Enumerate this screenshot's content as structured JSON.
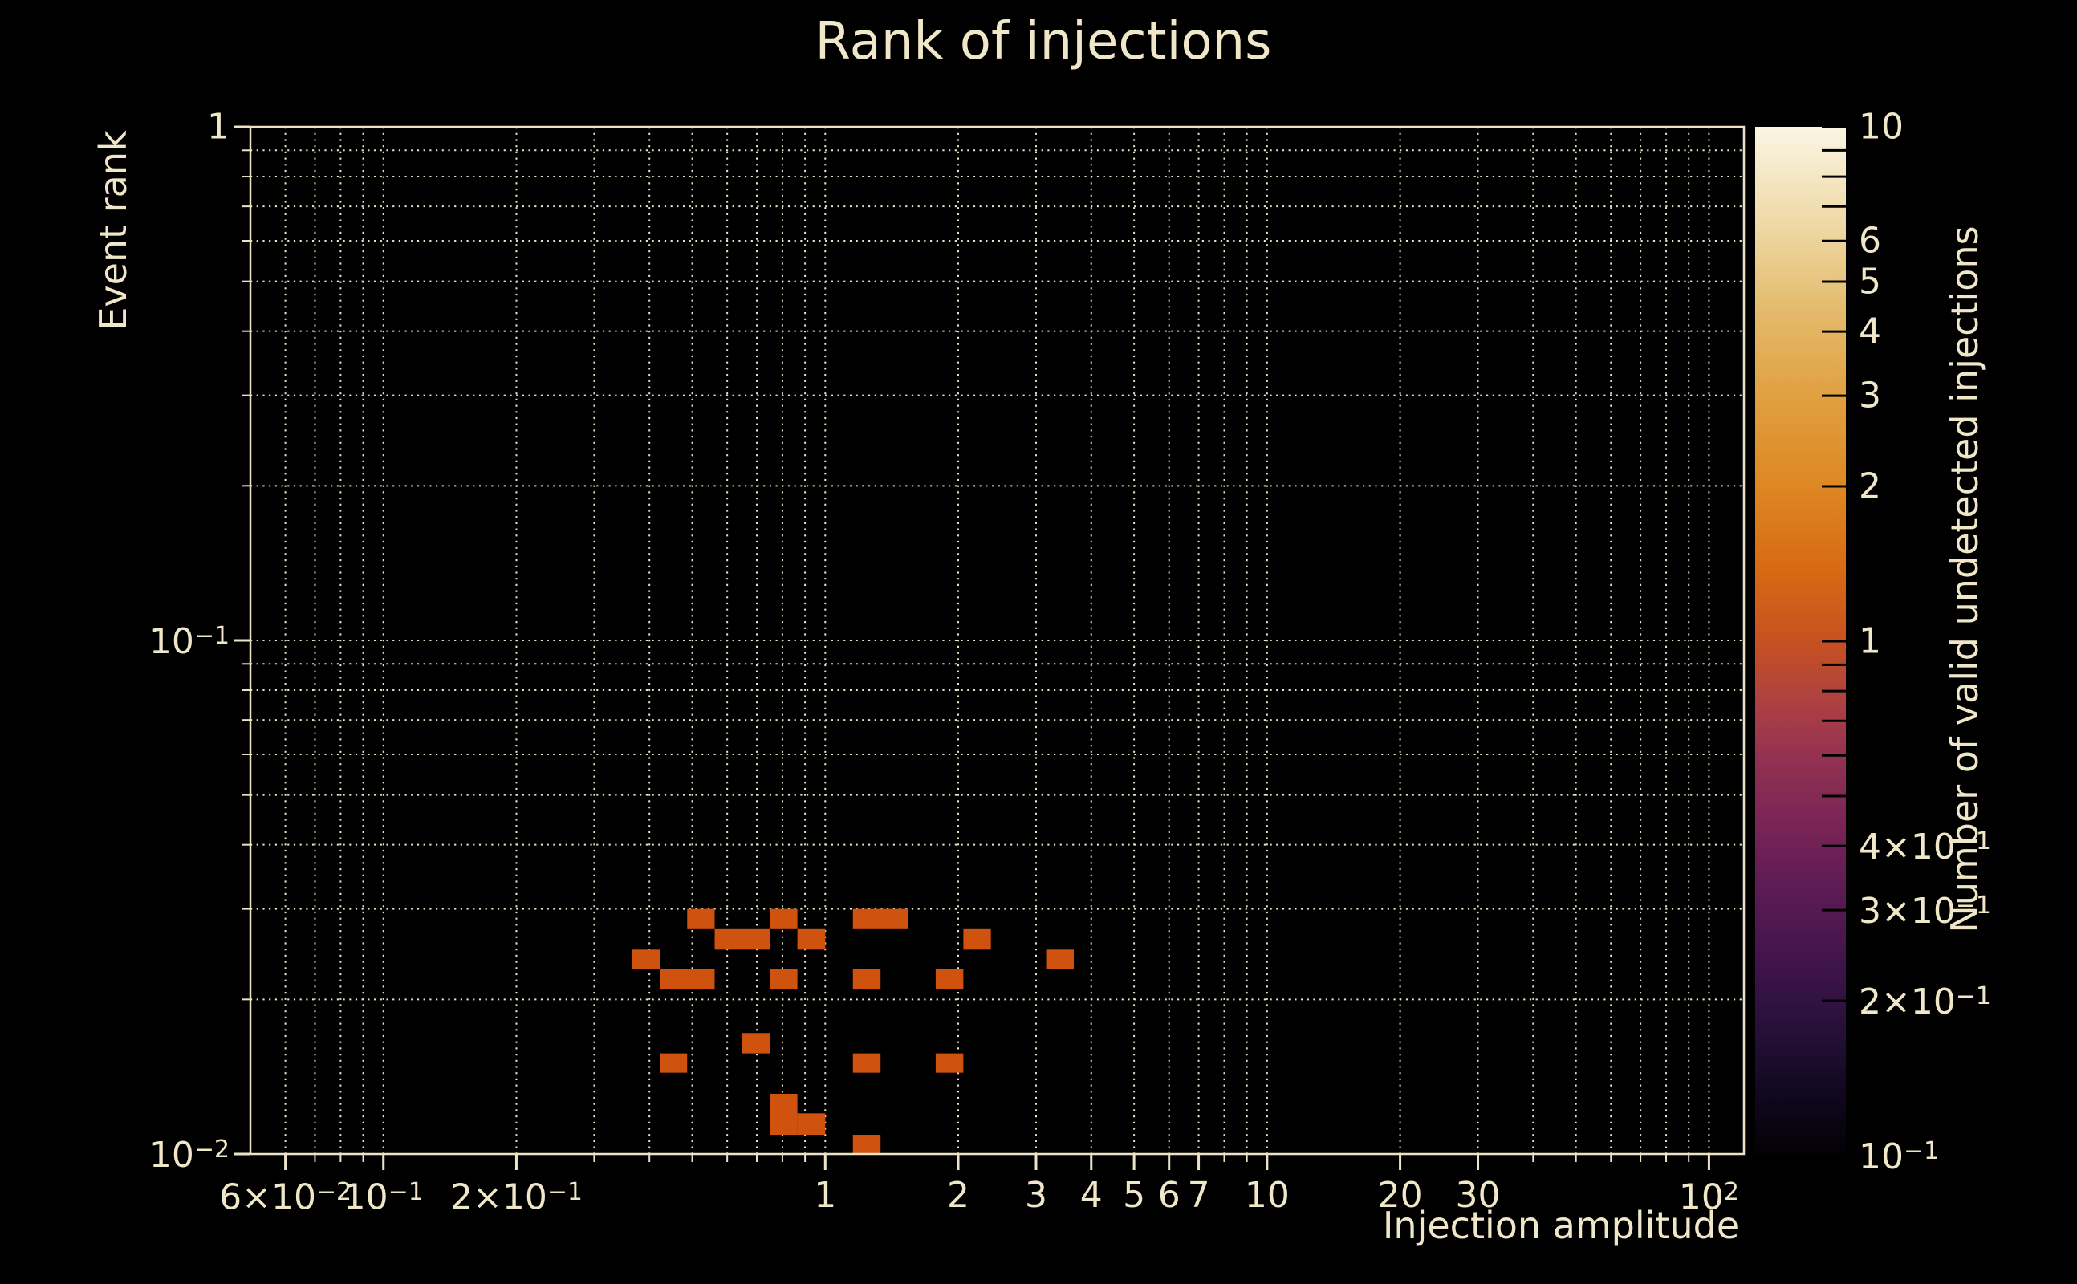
{
  "title": "Rank of injections",
  "colors": {
    "background": "#000000",
    "text": "#f0e7c8",
    "grid": "#ece3c6",
    "spine": "#ece3c6",
    "cell": "#d0520f",
    "colorbar_tick": "#000000"
  },
  "chart_data": {
    "type": "heatmap",
    "title": "Rank of injections",
    "xlabel": "Injection amplitude",
    "ylabel": "Event rank",
    "x_scale": "log",
    "y_scale": "log",
    "xlim": [
      0.05,
      120
    ],
    "ylim": [
      0.01,
      1
    ],
    "grid": "dotted cream gridlines at all log decades and minor multiples, both axes",
    "x_ticks": [
      {
        "v": 0.06,
        "m": "6×10",
        "e": "−2"
      },
      {
        "v": 0.1,
        "m": "10",
        "e": "−1"
      },
      {
        "v": 0.2,
        "m": "2×10",
        "e": "−1"
      },
      {
        "v": 1,
        "m": "1"
      },
      {
        "v": 2,
        "m": "2"
      },
      {
        "v": 3,
        "m": "3"
      },
      {
        "v": 4,
        "m": "4"
      },
      {
        "v": 5,
        "m": "5"
      },
      {
        "v": 6,
        "m": "6"
      },
      {
        "v": 7,
        "m": "7"
      },
      {
        "v": 10,
        "m": "10"
      },
      {
        "v": 20,
        "m": "20"
      },
      {
        "v": 30,
        "m": "30"
      },
      {
        "v": 100,
        "m": "10",
        "e": "2"
      }
    ],
    "y_ticks": [
      {
        "v": 1,
        "m": "1"
      },
      {
        "v": 0.1,
        "m": "10",
        "e": "−1"
      },
      {
        "v": 0.01,
        "m": "10",
        "e": "−2"
      }
    ],
    "colorbar": {
      "label": "Number of valid undetected injections",
      "scale": "log",
      "lim": [
        0.1,
        10
      ],
      "ticks": [
        {
          "v": 10,
          "m": "10"
        },
        {
          "v": 6,
          "m": "6"
        },
        {
          "v": 5,
          "m": "5"
        },
        {
          "v": 4,
          "m": "4"
        },
        {
          "v": 3,
          "m": "3"
        },
        {
          "v": 2,
          "m": "2"
        },
        {
          "v": 1,
          "m": "1"
        },
        {
          "v": 0.4,
          "m": "4×10",
          "e": "−1"
        },
        {
          "v": 0.3,
          "m": "3×10",
          "e": "−1"
        },
        {
          "v": 0.2,
          "m": "2×10",
          "e": "−1"
        },
        {
          "v": 0.1,
          "m": "10",
          "e": "−1"
        }
      ],
      "minor_ticks": [
        9,
        8,
        7,
        0.9,
        0.8,
        0.7,
        0.6,
        0.5
      ],
      "gradient": [
        {
          "t": 0.0,
          "c": "#030104"
        },
        {
          "t": 0.06,
          "c": "#10081f"
        },
        {
          "t": 0.12,
          "c": "#251038"
        },
        {
          "t": 0.18,
          "c": "#3d1349"
        },
        {
          "t": 0.25,
          "c": "#591a53"
        },
        {
          "t": 0.31,
          "c": "#742256"
        },
        {
          "t": 0.38,
          "c": "#903052"
        },
        {
          "t": 0.44,
          "c": "#ad4043"
        },
        {
          "t": 0.5,
          "c": "#c75120"
        },
        {
          "t": 0.57,
          "c": "#d76a14"
        },
        {
          "t": 0.65,
          "c": "#de8723"
        },
        {
          "t": 0.74,
          "c": "#e0a141"
        },
        {
          "t": 0.82,
          "c": "#e4ba6b"
        },
        {
          "t": 0.9,
          "c": "#eed7a2"
        },
        {
          "t": 1.0,
          "c": "#fbf6e3"
        }
      ]
    },
    "cells": [
      {
        "x1": 0.487,
        "x2": 0.562,
        "y1": 0.0274,
        "y2": 0.03,
        "v": 1
      },
      {
        "x1": 0.749,
        "x2": 0.865,
        "y1": 0.0274,
        "y2": 0.03,
        "v": 1
      },
      {
        "x1": 1.155,
        "x2": 1.54,
        "y1": 0.0274,
        "y2": 0.03,
        "v": 1
      },
      {
        "x1": 0.562,
        "x2": 0.749,
        "y1": 0.025,
        "y2": 0.0274,
        "v": 1
      },
      {
        "x1": 0.865,
        "x2": 1.0,
        "y1": 0.025,
        "y2": 0.0274,
        "v": 1
      },
      {
        "x1": 2.054,
        "x2": 2.371,
        "y1": 0.025,
        "y2": 0.0274,
        "v": 1
      },
      {
        "x1": 0.365,
        "x2": 0.422,
        "y1": 0.0229,
        "y2": 0.025,
        "v": 1
      },
      {
        "x1": 3.162,
        "x2": 3.652,
        "y1": 0.0229,
        "y2": 0.025,
        "v": 1
      },
      {
        "x1": 0.422,
        "x2": 0.562,
        "y1": 0.0209,
        "y2": 0.0229,
        "v": 1
      },
      {
        "x1": 0.749,
        "x2": 0.865,
        "y1": 0.0209,
        "y2": 0.0229,
        "v": 1
      },
      {
        "x1": 1.155,
        "x2": 1.334,
        "y1": 0.0209,
        "y2": 0.0229,
        "v": 1
      },
      {
        "x1": 1.778,
        "x2": 2.054,
        "y1": 0.0209,
        "y2": 0.0229,
        "v": 1
      },
      {
        "x1": 0.649,
        "x2": 0.749,
        "y1": 0.0157,
        "y2": 0.0172,
        "v": 1
      },
      {
        "x1": 0.422,
        "x2": 0.487,
        "y1": 0.0144,
        "y2": 0.0157,
        "v": 1
      },
      {
        "x1": 1.155,
        "x2": 1.334,
        "y1": 0.0144,
        "y2": 0.0157,
        "v": 1
      },
      {
        "x1": 1.778,
        "x2": 2.054,
        "y1": 0.0144,
        "y2": 0.0157,
        "v": 1
      },
      {
        "x1": 0.749,
        "x2": 0.865,
        "y1": 0.0109,
        "y2": 0.0131,
        "v": 1
      },
      {
        "x1": 0.865,
        "x2": 1.0,
        "y1": 0.0109,
        "y2": 0.012,
        "v": 1
      },
      {
        "x1": 1.155,
        "x2": 1.334,
        "y1": 0.01,
        "y2": 0.0109,
        "v": 1
      }
    ]
  }
}
